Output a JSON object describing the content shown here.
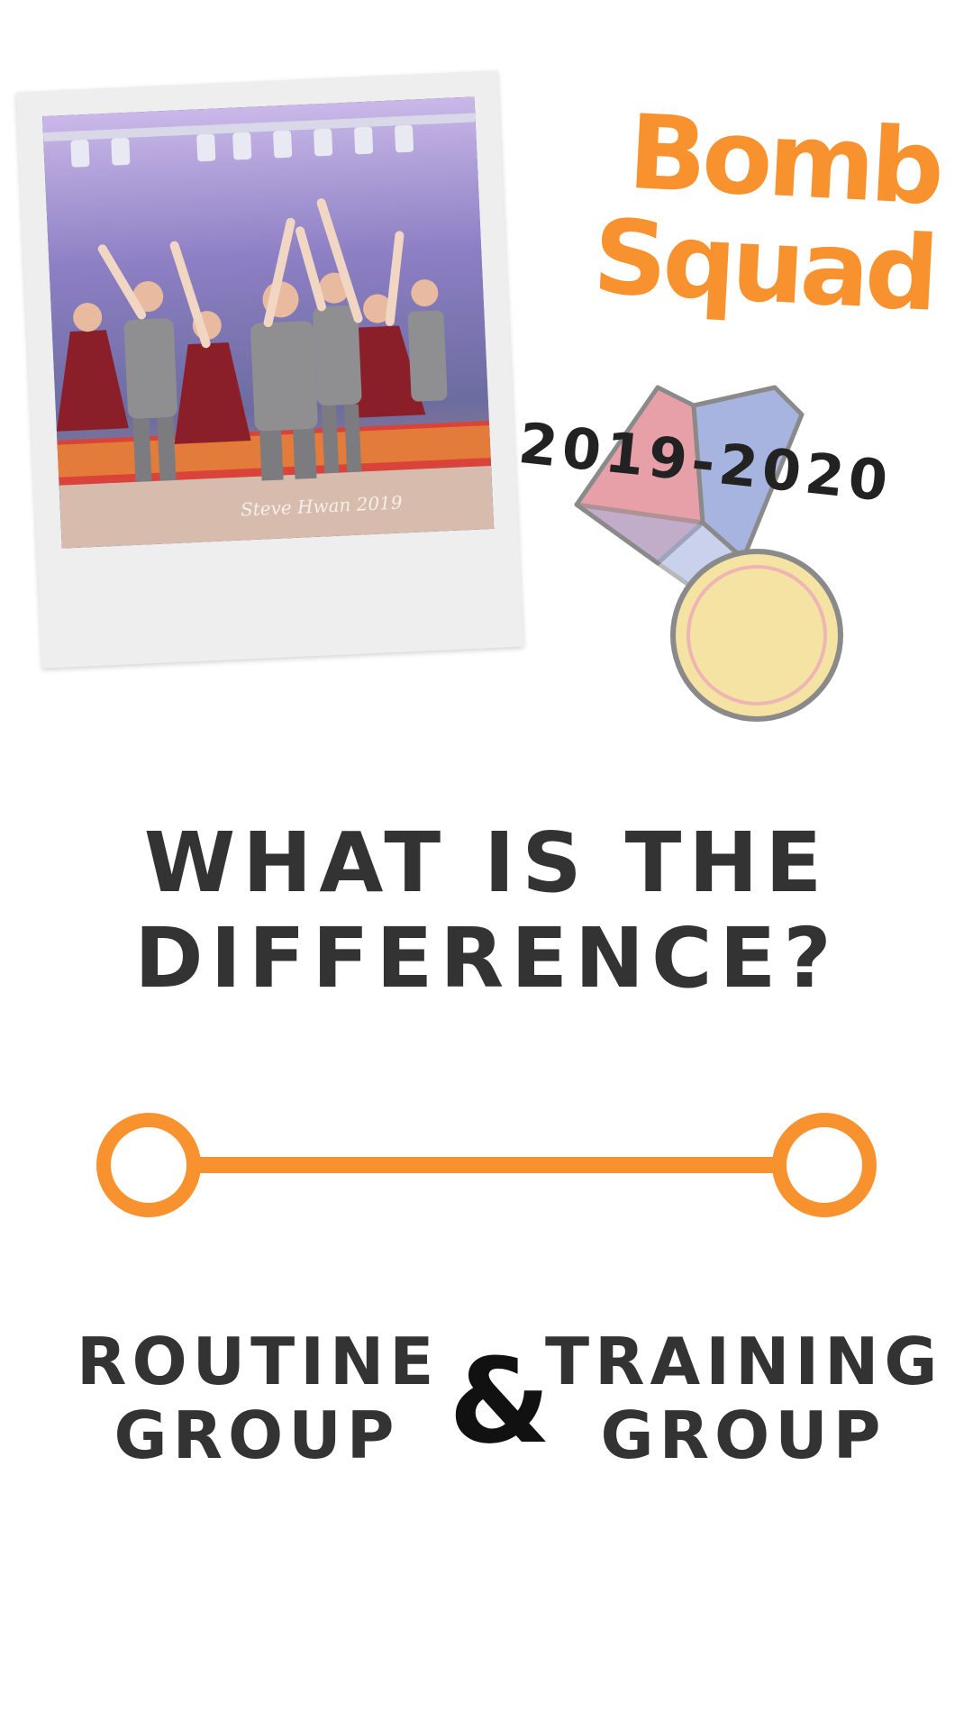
{
  "photo": {
    "watermark": "Steve Hwan 2019",
    "subject": "dance-team-photo"
  },
  "title": {
    "line1": "Bomb",
    "line2": "Squad",
    "years": "2019-2020",
    "color": "#f7922e"
  },
  "medal": {
    "icon": "medal-icon",
    "ribbon_colors": [
      "#e8a0a8",
      "#a8b4e0"
    ],
    "disc_color": "#f5e3a4",
    "outline_color": "#8a8a8a"
  },
  "headline": {
    "line1": "WHAT IS THE",
    "line2": "DIFFERENCE?"
  },
  "connector": {
    "icon": "two-circle-connector-icon",
    "color": "#f7922e"
  },
  "groups": {
    "left_line1": "ROUTINE",
    "left_line2": "GROUP",
    "ampersand": "&",
    "right_line1": "TRAINING",
    "right_line2": "GROUP"
  }
}
